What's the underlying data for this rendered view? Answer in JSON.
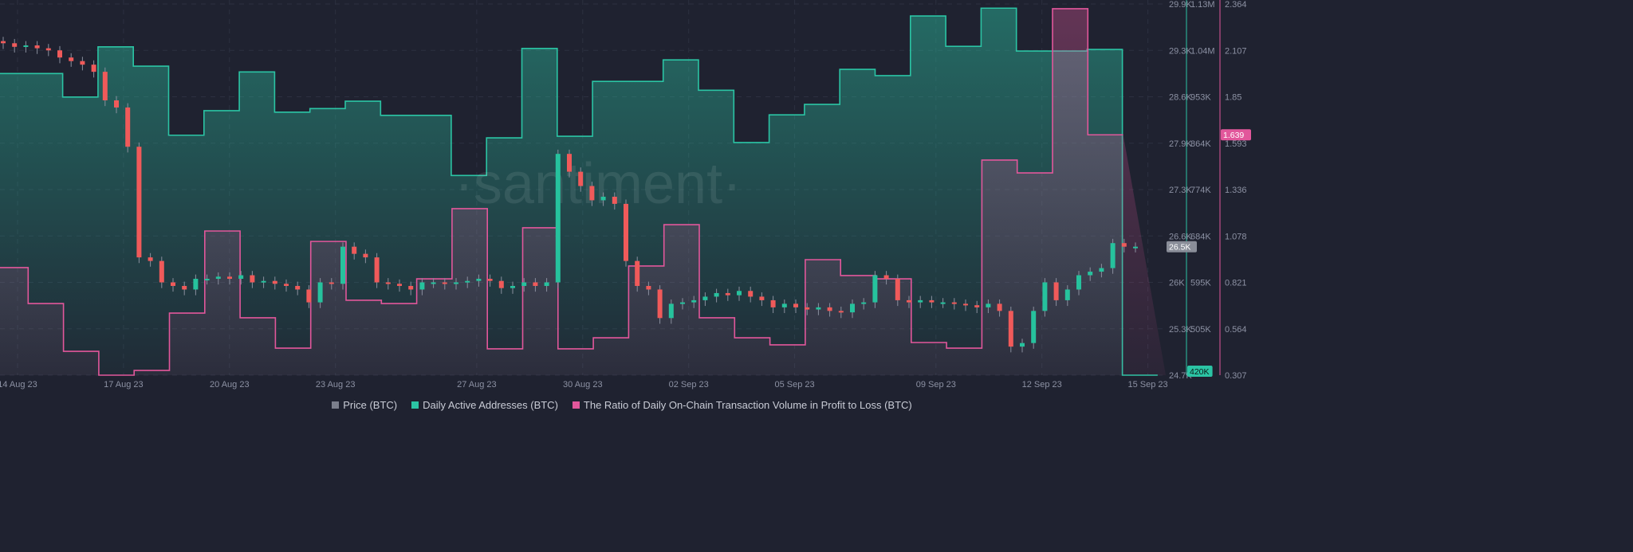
{
  "colors": {
    "price": "#7b7f8c",
    "daa": "#2bc4a4",
    "ratio": "#e2579b",
    "up": "#26c29d",
    "down": "#f05a5a",
    "bg": "#1f2230"
  },
  "watermark": "·santiment·",
  "chart_data": {
    "type": "line",
    "title": "",
    "x_tick_labels": [
      "14 Aug 23",
      "17 Aug 23",
      "20 Aug 23",
      "23 Aug 23",
      "27 Aug 23",
      "30 Aug 23",
      "02 Sep 23",
      "05 Sep 23",
      "09 Sep 23",
      "12 Sep 23",
      "15 Sep 23"
    ],
    "x_tick_days": [
      0,
      3,
      6,
      9,
      13,
      16,
      19,
      22,
      26,
      29,
      32
    ],
    "legend_placement": "bottom-center",
    "grid": true,
    "axes": {
      "price": {
        "ticks": [
          "29.9K",
          "29.3K",
          "28.6K",
          "27.9K",
          "27.3K",
          "26.6K",
          "26K",
          "25.3K",
          "24.7K"
        ],
        "range": [
          24.7,
          29.9
        ],
        "current": "26.5K"
      },
      "daa": {
        "ticks": [
          "1.13M",
          "1.04M",
          "953K",
          "864K",
          "774K",
          "684K",
          "595K",
          "505K"
        ],
        "range": [
          420,
          1130
        ],
        "current": "420K"
      },
      "ratio": {
        "ticks": [
          "2.364",
          "2.107",
          "1.85",
          "1.593",
          "1.336",
          "1.078",
          "0.821",
          "0.564",
          "0.307"
        ],
        "range": [
          0.307,
          2.364
        ],
        "current": "1.639"
      }
    },
    "series": [
      {
        "name": "Price (BTC)",
        "type": "candlestick",
        "unit": "K USD",
        "closes": [
          29.35,
          29.3,
          29.32,
          29.28,
          29.25,
          29.15,
          29.1,
          29.05,
          28.95,
          28.55,
          28.45,
          27.9,
          26.35,
          26.3,
          26.0,
          25.95,
          25.9,
          26.05,
          26.05,
          26.08,
          26.05,
          26.1,
          26.0,
          26.02,
          25.98,
          25.95,
          25.9,
          25.72,
          26.0,
          25.98,
          26.5,
          26.4,
          26.35,
          26.0,
          25.98,
          25.95,
          25.9,
          26.0,
          26.0,
          25.98,
          26.0,
          26.02,
          26.05,
          26.02,
          25.92,
          25.95,
          26.0,
          25.95,
          26.0,
          27.8,
          27.55,
          27.35,
          27.15,
          27.2,
          27.1,
          26.3,
          25.95,
          25.9,
          25.5,
          25.7,
          25.72,
          25.75,
          25.8,
          25.85,
          25.82,
          25.88,
          25.8,
          25.75,
          25.65,
          25.7,
          25.65,
          25.62,
          25.65,
          25.6,
          25.58,
          25.7,
          25.72,
          26.1,
          26.05,
          25.75,
          25.72,
          25.75,
          25.72,
          25.72,
          25.7,
          25.68,
          25.65,
          25.7,
          25.6,
          25.1,
          25.15,
          25.6,
          26.0,
          25.75,
          25.9,
          26.1,
          26.15,
          26.2,
          26.55,
          26.5,
          26.5
        ]
      },
      {
        "name": "Daily Active Addresses (BTC)",
        "type": "step-area",
        "unit": "K",
        "values": [
          997,
          997,
          952,
          1048,
          1011,
          879,
          926,
          1000,
          923,
          930,
          944,
          917,
          917,
          802,
          874,
          1045,
          877,
          982,
          982,
          1023,
          965,
          865,
          918,
          938,
          1005,
          993,
          1107,
          1049,
          1122,
          1040,
          1040,
          1043,
          420
        ]
      },
      {
        "name": "The Ratio of Daily On-Chain Transaction Volume in Profit to Loss (BTC)",
        "type": "step-area",
        "values": [
          0.903,
          0.704,
          0.439,
          0.307,
          0.333,
          0.651,
          1.106,
          0.625,
          0.457,
          1.048,
          0.722,
          0.704,
          0.841,
          1.23,
          0.453,
          1.124,
          0.453,
          0.514,
          0.912,
          1.141,
          0.625,
          0.514,
          0.475,
          0.947,
          0.859,
          0.841,
          0.488,
          0.457,
          1.499,
          1.428,
          2.338,
          1.639
        ]
      }
    ]
  },
  "legend": {
    "price": "Price (BTC)",
    "daa": "Daily Active Addresses (BTC)",
    "ratio": "The Ratio of Daily On-Chain Transaction Volume in Profit to Loss (BTC)"
  }
}
